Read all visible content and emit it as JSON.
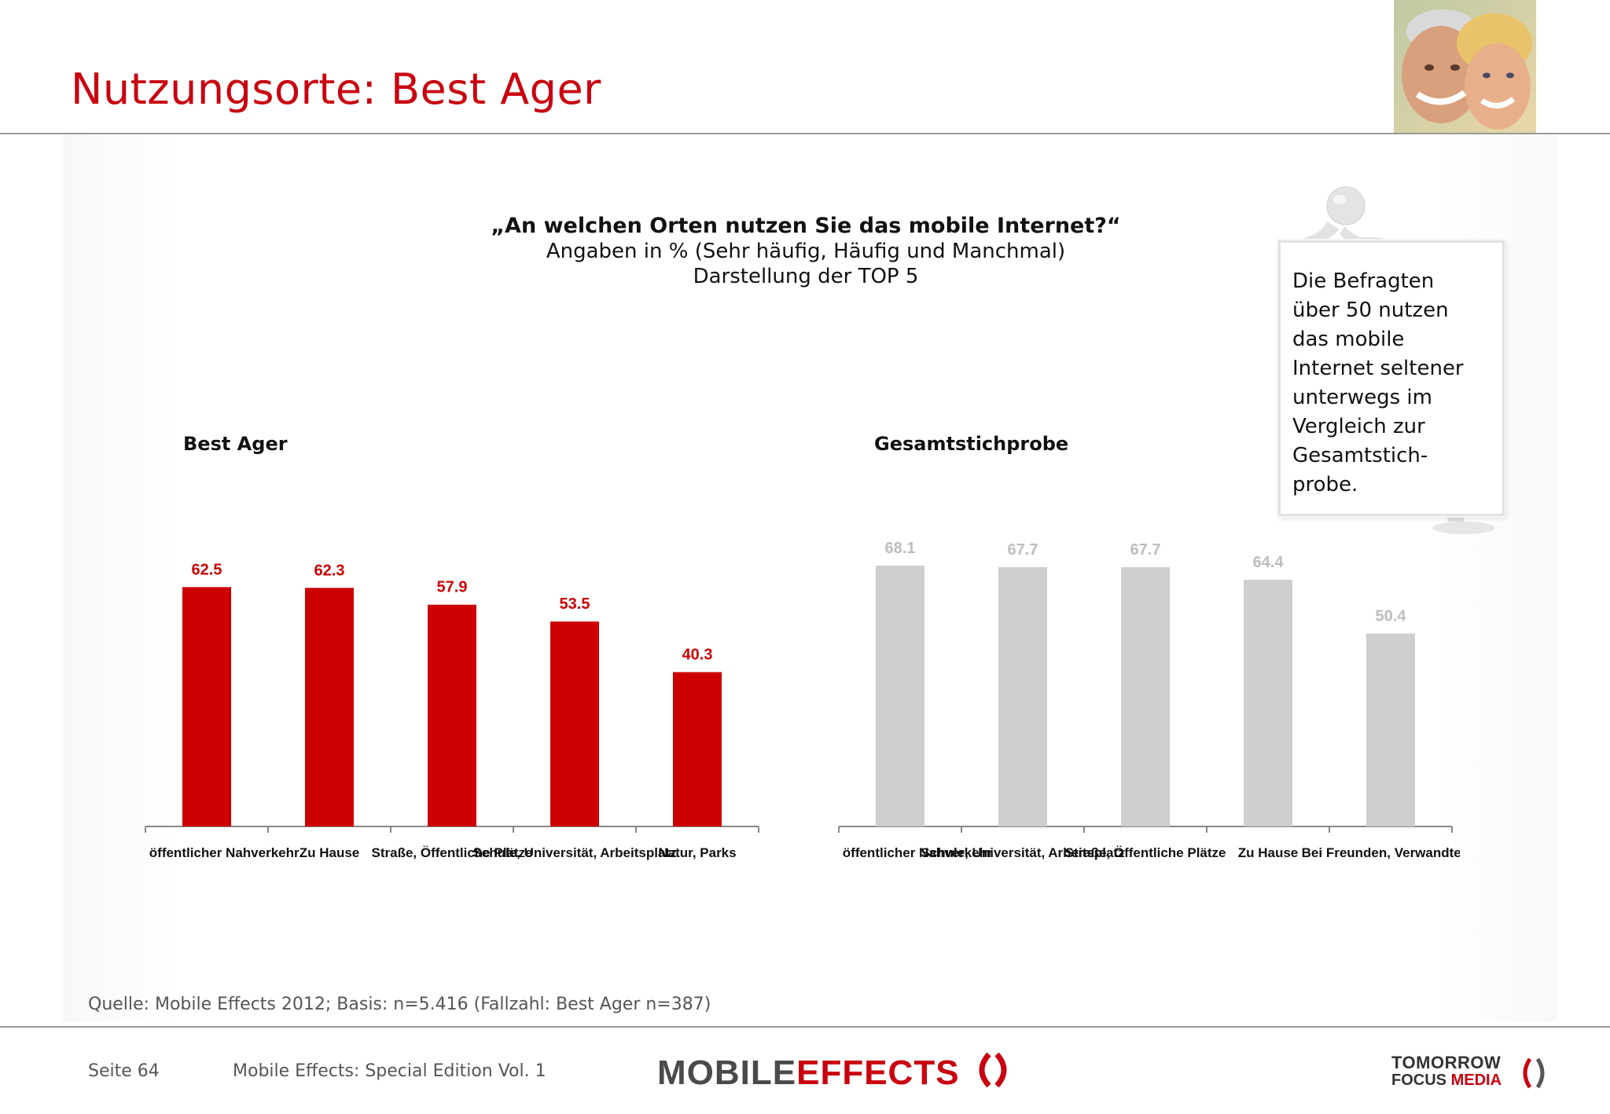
{
  "slide": {
    "title": "Nutzungsorte: Best Ager"
  },
  "question": {
    "main": "„An welchen Orten nutzen Sie das mobile Internet?“",
    "line2": "Angaben in % (Sehr häufig, Häufig und Manchmal)",
    "line3": "Darstellung der TOP 5"
  },
  "note": {
    "text_lines": [
      "Die Befragten",
      "über 50 nutzen",
      "das mobile",
      "Internet seltener",
      "unterwegs im",
      "Vergleich zur",
      "Gesamtstich-",
      "probe."
    ]
  },
  "chart_data": [
    {
      "type": "bar",
      "title": "Best Ager",
      "categories": [
        "Bahnhof, Flughafen, öffentlicher Nahverkehr",
        "Zu Hause",
        "Straße, Öffentliche Plätze",
        "Schule, Universität, Arbeitsplatz",
        "Natur, Parks"
      ],
      "category_labels_visible": [
        "afen, öffentlicher Nahverkehr",
        "Zu Hause",
        "Straße, Öffentliche Plätze",
        "Schule, Universität, Arbeitsplatz",
        "Natur, Parks"
      ],
      "values": [
        62.5,
        62.3,
        57.9,
        53.5,
        40.3
      ],
      "ylim": [
        0,
        70
      ],
      "grid": false,
      "color": "#cc0000",
      "label_color": "#cc0000"
    },
    {
      "type": "bar",
      "title": "Gesamtstichprobe",
      "categories": [
        "Bahnhof, Flughafen, öffentlicher Nahverkehr",
        "Schule, Universität, Arbeitsplatz",
        "Straße, Öffentliche Plätze",
        "Zu Hause",
        "Bei Freunden, Verwandten zu Besuch"
      ],
      "category_labels_visible": [
        "afen, öffentlicher Nahverkehr",
        "Schule, Universität, Arbeitsplatz",
        "Straße, Öffentliche Plätze",
        "Zu Hause",
        "Bei Freunden, Verwandten z"
      ],
      "values": [
        68.1,
        67.7,
        67.7,
        64.4,
        50.4
      ],
      "ylim": [
        0,
        70
      ],
      "grid": false,
      "color": "#cfcdd0",
      "label_color": "#bdbdbd"
    }
  ],
  "footer": {
    "source": "Quelle: Mobile Effects 2012; Basis: n=5.416 (Fallzahl: Best Ager n=387)",
    "page": "Seite 64",
    "edition": "Mobile Effects: Special Edition Vol. 1",
    "logo_mobile": "MOBILE",
    "logo_effects": "EFFECTS",
    "logo_tomorrow": "TOMORROW",
    "logo_focus": "FOCUS",
    "logo_media": "MEDIA"
  }
}
